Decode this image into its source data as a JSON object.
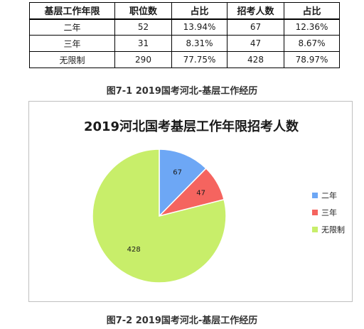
{
  "table": {
    "headers": [
      "基层工作年限",
      "职位数",
      "占比",
      "招考人数",
      "占比"
    ],
    "rows": [
      [
        "二年",
        "52",
        "13.94%",
        "67",
        "12.36%"
      ],
      [
        "三年",
        "31",
        "8.31%",
        "47",
        "8.67%"
      ],
      [
        "无限制",
        "290",
        "77.75%",
        "428",
        "78.97%"
      ]
    ],
    "caption": "图7-1 2019国考河北-基层工作经历"
  },
  "chart_data": {
    "type": "pie",
    "title": "2019河北国考基层工作年限招考人数",
    "categories": [
      "二年",
      "三年",
      "无限制"
    ],
    "values": [
      67,
      47,
      428
    ],
    "colors": [
      "#6da7f5",
      "#f5645f",
      "#c8ee6a"
    ],
    "data_labels": [
      "67",
      "47",
      "428"
    ],
    "legend_position": "right"
  },
  "caption2": "图7-2 2019国考河北-基层工作经历"
}
